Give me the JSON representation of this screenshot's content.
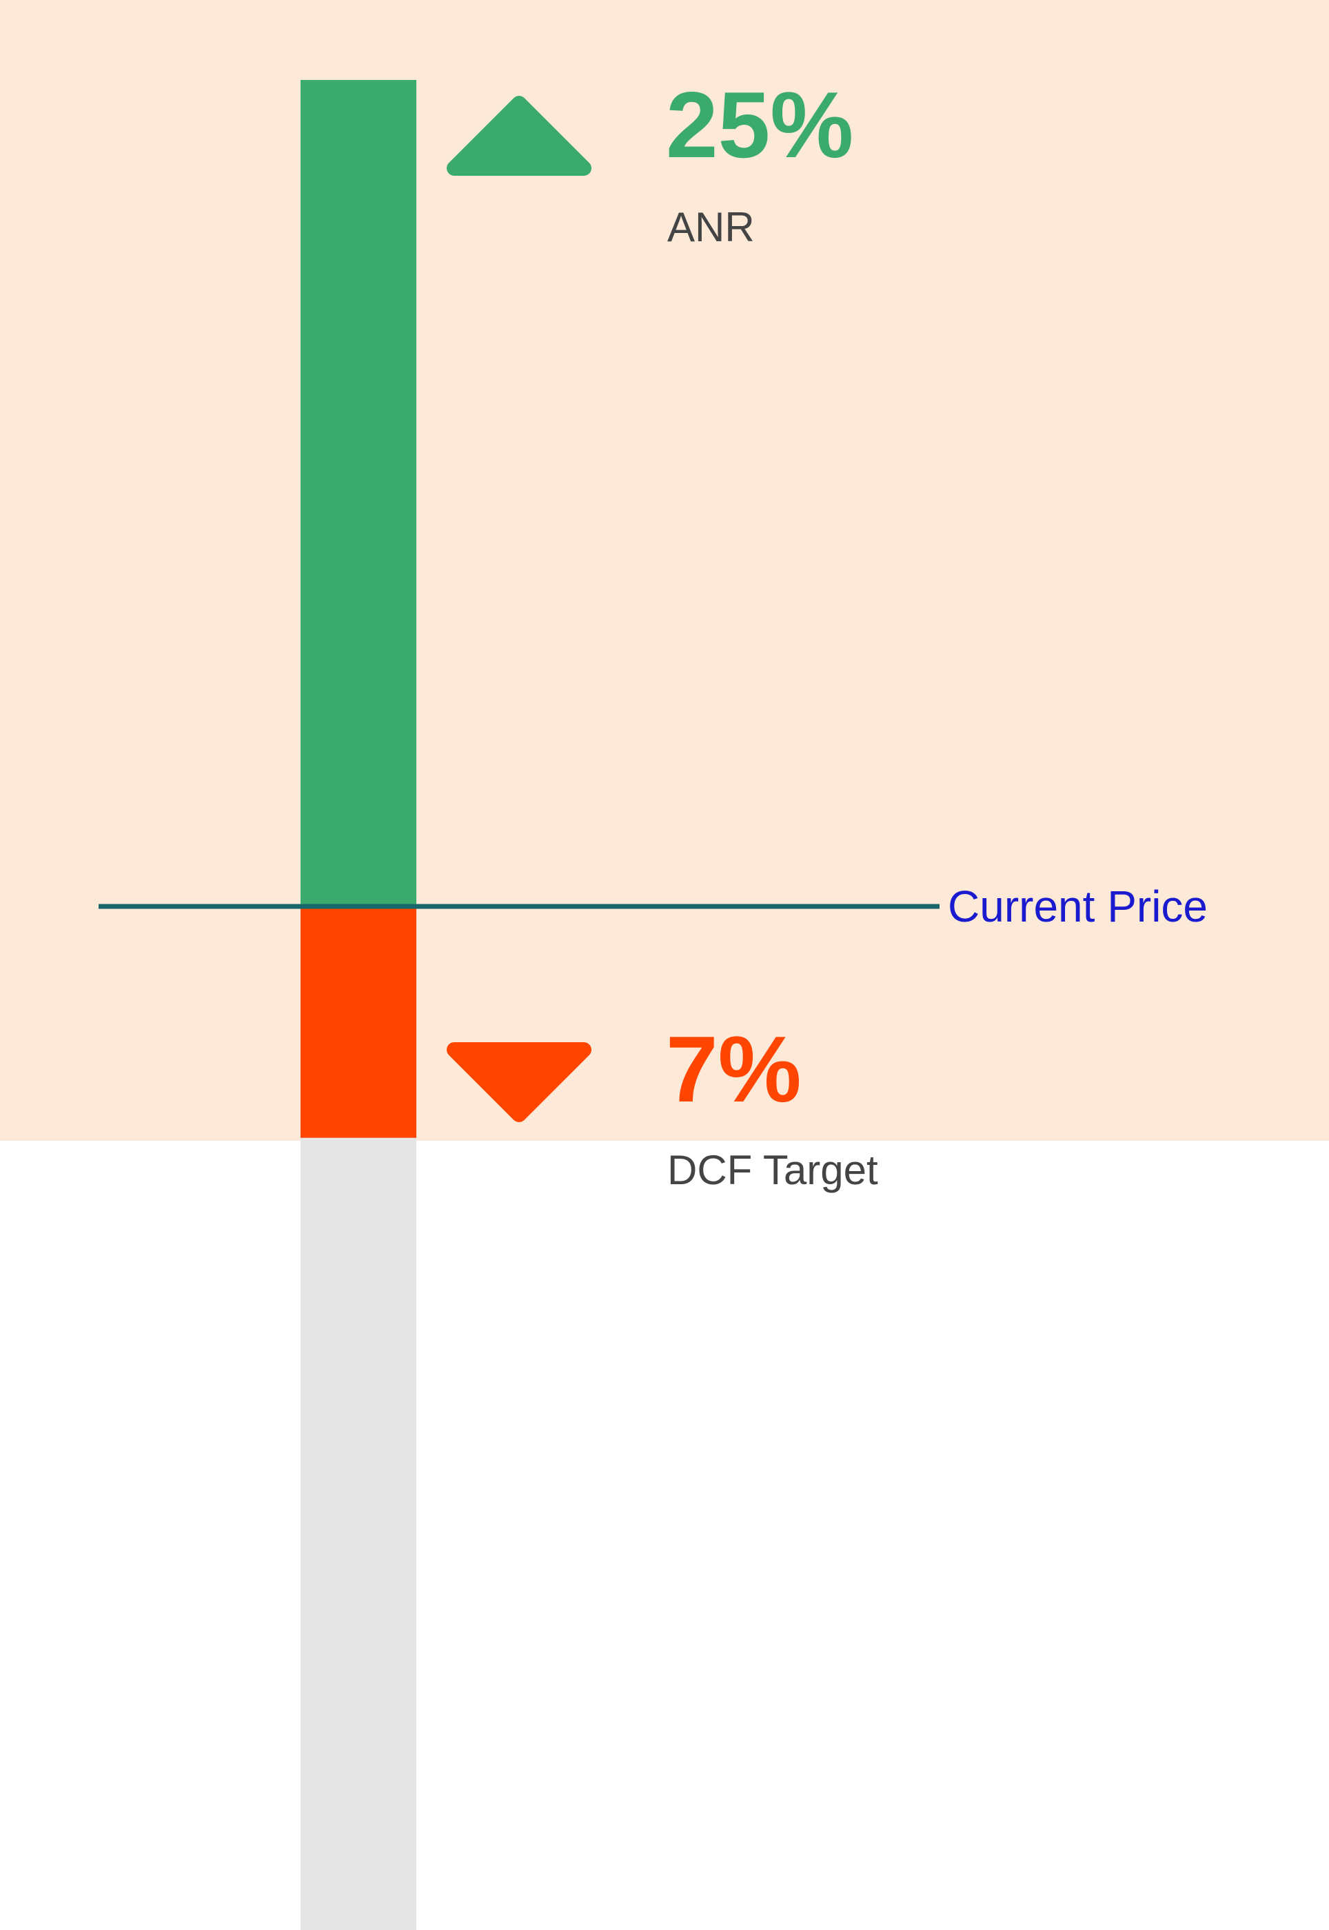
{
  "chart_data": {
    "type": "bar",
    "reference_line": {
      "label": "Current Price"
    },
    "segments": [
      {
        "name": "ANR",
        "percent_label": "25%",
        "value": 25,
        "direction": "up",
        "color": "#3aaa6e"
      },
      {
        "name": "DCF Target",
        "percent_label": "7%",
        "value": -7,
        "direction": "down",
        "color": "#ff4500"
      }
    ],
    "colors": {
      "highlight_band": "#fce9d8",
      "track": "#e5e5e5",
      "reference_line": "#17676c",
      "reference_label": "#1a1acf"
    },
    "icons": {
      "up": "triangle-up-icon",
      "down": "triangle-down-icon"
    }
  }
}
